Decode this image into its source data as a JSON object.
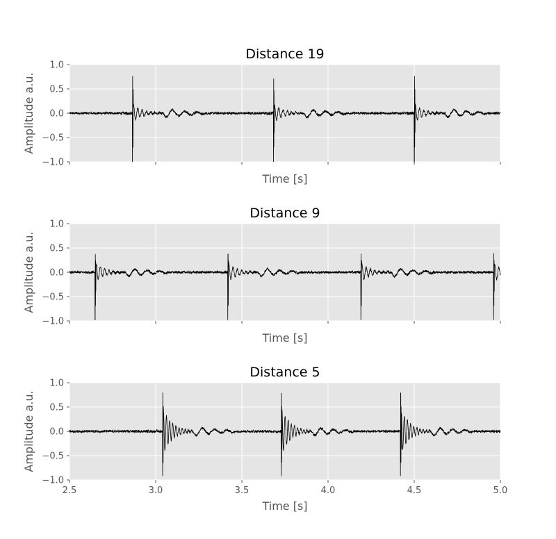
{
  "chart_data": [
    {
      "type": "line",
      "title": "Distance 19",
      "xlabel": "Time [s]",
      "ylabel": "Amplitude a.u.",
      "xlim": [
        2.5,
        5.0
      ],
      "ylim": [
        -1.0,
        1.0
      ],
      "xticks": [
        "2.5",
        "3.0",
        "3.5",
        "4.0",
        "4.5",
        "5.0"
      ],
      "show_xtick_labels": false,
      "yticks": [
        "1.0",
        "0.5",
        "0.0",
        "−0.5",
        "−1.0"
      ],
      "grid": true,
      "background": "#e5e5e5",
      "line_color": "#000000",
      "series": [
        {
          "pulse_times": [
            2.865,
            3.683,
            4.5
          ],
          "pulse_peak_max": [
            0.9,
            0.84,
            0.9
          ],
          "pulse_peak_min": [
            -1.0,
            -1.0,
            -1.0
          ]
        }
      ]
    },
    {
      "type": "line",
      "title": "Distance 9",
      "xlabel": "Time [s]",
      "ylabel": "Amplitude a.u.",
      "xlim": [
        2.5,
        5.0
      ],
      "ylim": [
        -1.0,
        1.0
      ],
      "xticks": [
        "2.5",
        "3.0",
        "3.5",
        "4.0",
        "4.5",
        "5.0"
      ],
      "show_xtick_labels": false,
      "yticks": [
        "1.0",
        "0.5",
        "0.0",
        "−0.5",
        "−1.0"
      ],
      "grid": true,
      "background": "#e5e5e5",
      "line_color": "#000000",
      "series": [
        {
          "pulse_times": [
            2.648,
            3.418,
            4.19,
            4.96
          ],
          "pulse_peak_max": [
            0.44,
            0.44,
            0.45,
            0.46
          ],
          "pulse_peak_min": [
            -0.98,
            -0.98,
            -0.98,
            -0.98
          ]
        }
      ]
    },
    {
      "type": "line",
      "title": "Distance 5",
      "xlabel": "Time [s]",
      "ylabel": "Amplitude a.u.",
      "xlim": [
        2.5,
        5.0
      ],
      "ylim": [
        -1.0,
        1.0
      ],
      "xticks": [
        "2.5",
        "3.0",
        "3.5",
        "4.0",
        "4.5",
        "5.0"
      ],
      "show_xtick_labels": true,
      "yticks": [
        "1.0",
        "0.5",
        "0.0",
        "−0.5",
        "−1.0"
      ],
      "grid": true,
      "background": "#e5e5e5",
      "line_color": "#000000",
      "series": [
        {
          "pulse_times": [
            3.04,
            3.728,
            4.42
          ],
          "pulse_peak_max": [
            0.94,
            0.93,
            0.93
          ],
          "pulse_peak_min": [
            -0.92,
            -0.92,
            -0.92
          ]
        }
      ]
    }
  ]
}
